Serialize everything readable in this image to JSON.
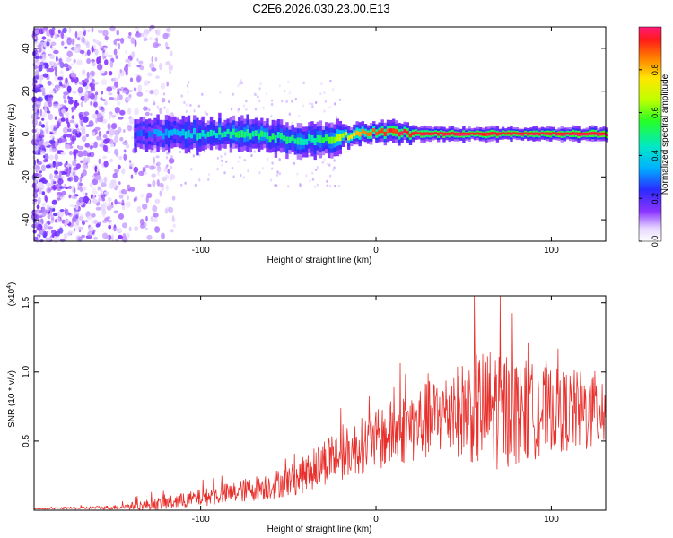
{
  "title": "C2E6.2026.030.23.00.E13",
  "chart_data": [
    {
      "type": "heatmap",
      "xlabel": "Height of straight line (km)",
      "ylabel": "Frequency (Hz)",
      "xlim": [
        -195,
        131
      ],
      "ylim": [
        -50,
        50
      ],
      "xticks": [
        -100,
        0,
        100
      ],
      "yticks": [
        -40,
        -20,
        0,
        20,
        40
      ],
      "ridge": {
        "description_points_x": [
          -135,
          -110,
          -80,
          -50,
          -35,
          -25,
          -10,
          0,
          20,
          40,
          60,
          80,
          100,
          131
        ],
        "center_hz": [
          0,
          0,
          0,
          -2,
          -3,
          -2,
          0,
          1,
          0.5,
          0,
          0,
          0,
          0,
          0
        ],
        "peak_amplitude": [
          0.25,
          0.4,
          0.5,
          0.5,
          0.45,
          0.6,
          0.8,
          0.9,
          0.95,
          1.0,
          0.95,
          1.0,
          1.0,
          1.0
        ]
      },
      "colorbar": {
        "label": "Normalized spectral amplitude",
        "range": [
          0,
          1
        ],
        "ticks": [
          "0.0",
          "0.2",
          "0.4",
          "0.6",
          "0.8"
        ]
      }
    },
    {
      "type": "line",
      "xlabel": "Height of straight line (km)",
      "ylabel": "SNR (10 * v/v)",
      "exponent_label": "(x10",
      "exponent_power": "4",
      "exponent_close": ")",
      "xlim": [
        -195,
        131
      ],
      "ylim": [
        0,
        15500
      ],
      "xticks": [
        -100,
        0,
        100
      ],
      "yticks": [
        "0.5",
        "1.0",
        "1.5"
      ],
      "ytick_values": [
        5000,
        10000,
        15000
      ],
      "series": [
        {
          "name": "SNR",
          "color": "#e8302c",
          "x": [
            -195,
            -150,
            -120,
            -100,
            -80,
            -60,
            -45,
            -35,
            -28,
            -20,
            -10,
            0,
            10,
            20,
            30,
            40,
            50,
            60,
            70,
            80,
            90,
            100,
            110,
            120,
            131
          ],
          "mean": [
            100,
            200,
            500,
            900,
            1300,
            1800,
            2300,
            3000,
            3700,
            4000,
            4600,
            5000,
            5600,
            6100,
            6500,
            7000,
            7300,
            7300,
            7400,
            7200,
            7100,
            7300,
            7200,
            7100,
            7300
          ],
          "spread": [
            30,
            150,
            500,
            600,
            800,
            1000,
            1200,
            1500,
            1800,
            1800,
            2000,
            2200,
            2500,
            2700,
            2900,
            3000,
            3500,
            4500,
            4500,
            4000,
            3500,
            3000,
            3000,
            3000,
            2800
          ]
        }
      ]
    }
  ]
}
